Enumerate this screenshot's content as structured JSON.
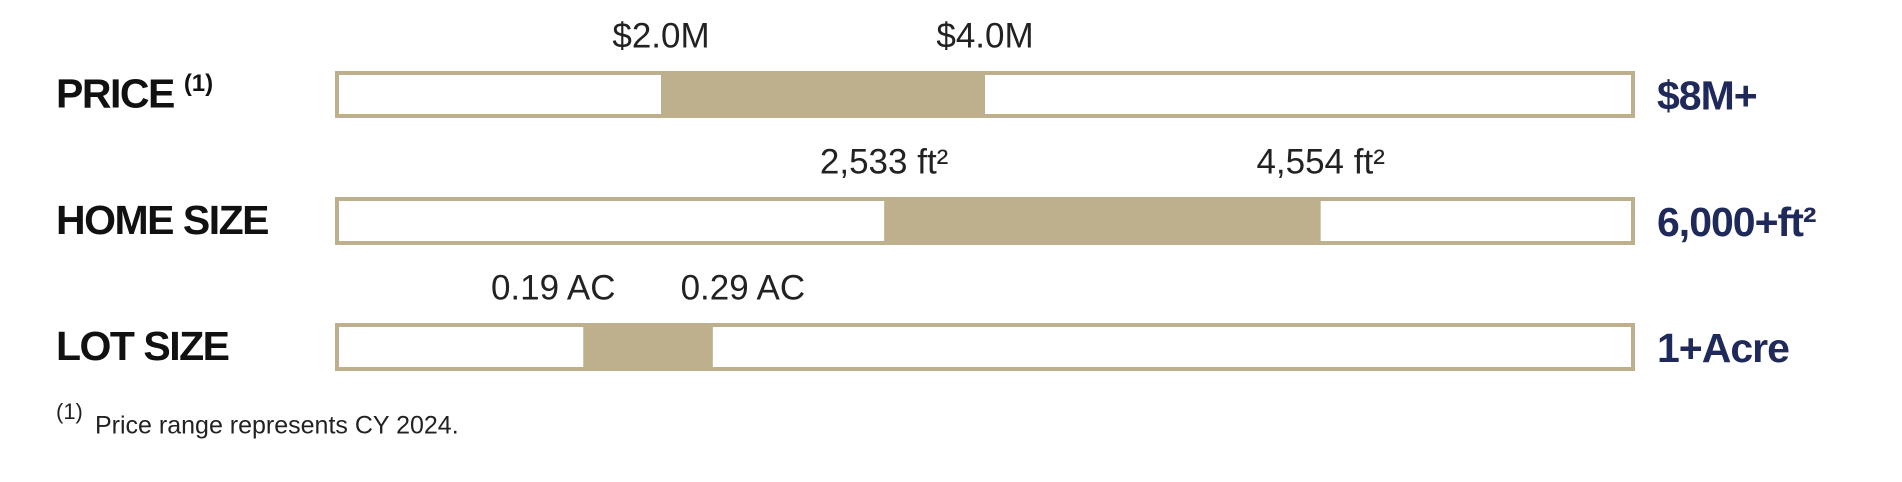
{
  "chart_data": [
    {
      "type": "range_bar",
      "label": "PRICE",
      "label_note": "(1)",
      "values": [
        2000000,
        4000000
      ],
      "value_labels": [
        "$2.0M",
        "$4.0M"
      ],
      "xlim": [
        0,
        8000000
      ],
      "xticks": [
        {
          "value": 8000000,
          "label": "$8M+"
        }
      ],
      "color": "#bfb08d"
    },
    {
      "type": "range_bar",
      "label": "HOME SIZE",
      "values": [
        2533,
        4554
      ],
      "value_labels": [
        "2,533 ft²",
        "4,554 ft²"
      ],
      "xlim": [
        0,
        6000
      ],
      "xticks": [
        {
          "value": 6000,
          "label": "6,000+ft²"
        }
      ],
      "color": "#bfb08d"
    },
    {
      "type": "range_bar",
      "label": "LOT SIZE",
      "values": [
        0.19,
        0.29
      ],
      "value_labels": [
        "0.19 AC",
        "0.29 AC"
      ],
      "xlim": [
        0,
        1
      ],
      "xticks": [
        {
          "value": 1,
          "label": "1+Acre"
        }
      ],
      "color": "#bfb08d"
    }
  ],
  "footnote": {
    "marker": "(1)",
    "text": "Price range represents CY 2024."
  }
}
